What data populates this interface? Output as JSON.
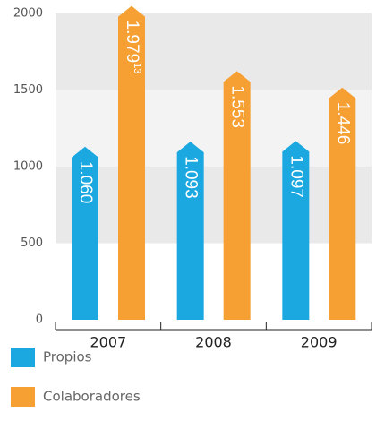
{
  "chart_data": {
    "type": "bar",
    "categories": [
      "2007",
      "2008",
      "2009"
    ],
    "series": [
      {
        "name": "Propios",
        "color": "#1ba8e0",
        "values": [
          1060,
          1093,
          1097
        ],
        "value_labels": [
          "1.060",
          "1.093",
          "1.097"
        ]
      },
      {
        "name": "Colaboradores",
        "color": "#f6a033",
        "values": [
          1979,
          1553,
          1446
        ],
        "value_labels": [
          "1.979",
          "1.553",
          "1.446"
        ],
        "value_label_notes": [
          "13",
          null,
          null
        ]
      }
    ],
    "ylim": [
      0,
      2000
    ],
    "yticks": [
      0,
      500,
      1000,
      1500,
      2000
    ],
    "grid": true
  }
}
